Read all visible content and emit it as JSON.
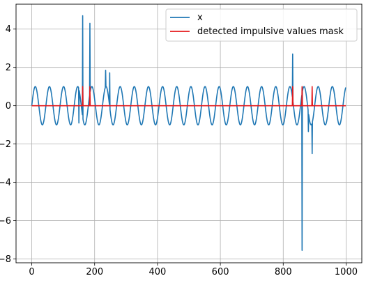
{
  "chart_data": {
    "type": "line",
    "title": "",
    "xlabel": "",
    "ylabel": "",
    "xlim": [
      -50,
      1050
    ],
    "ylim": [
      -8.2,
      5.3
    ],
    "grid": true,
    "legend_placement": "top-right",
    "x_ticks": [
      0,
      200,
      400,
      600,
      800,
      1000
    ],
    "y_ticks": [
      -8,
      -6,
      -4,
      -2,
      0,
      2,
      4
    ],
    "series": [
      {
        "name": "x",
        "color": "#1f77b4",
        "signal": {
          "kind": "sine",
          "amplitude": 1,
          "period": 45,
          "n_samples": 1000
        },
        "impulses": [
          {
            "x": 150,
            "y": -0.9
          },
          {
            "x": 162,
            "y": 4.7
          },
          {
            "x": 185,
            "y": 4.3
          },
          {
            "x": 235,
            "y": 1.85
          },
          {
            "x": 248,
            "y": 1.72
          },
          {
            "x": 830,
            "y": 2.7
          },
          {
            "x": 860,
            "y": -7.55
          },
          {
            "x": 880,
            "y": -1.35
          },
          {
            "x": 892,
            "y": -2.5
          }
        ]
      },
      {
        "name": "detected impulsive values mask",
        "color": "#e41a1c",
        "baseline": 0,
        "mask_x": [
          162,
          185,
          830,
          860,
          892
        ],
        "mask_value": 1
      }
    ]
  }
}
